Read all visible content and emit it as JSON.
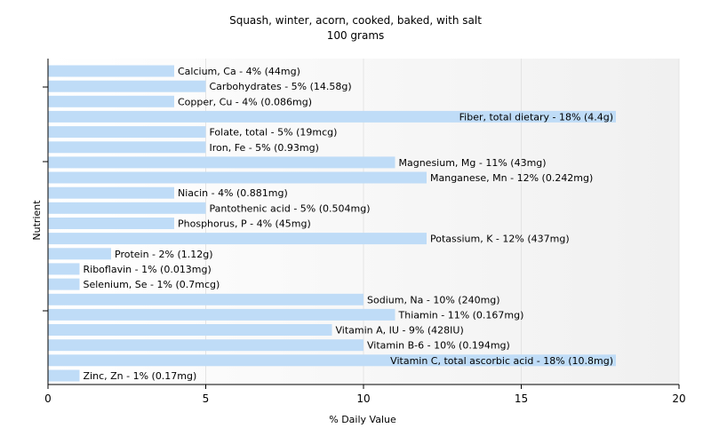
{
  "chart_data": {
    "type": "bar",
    "orientation": "horizontal",
    "title": "Squash, winter, acorn, cooked, baked, with salt",
    "subtitle": "100 grams",
    "xlabel": "% Daily Value",
    "ylabel": "Nutrient",
    "xlim": [
      0,
      20
    ],
    "xticks": [
      "0",
      "5",
      "10",
      "15",
      "20"
    ],
    "grid": "vertical",
    "bar_color": "#bfdcf7",
    "categories": [
      "Calcium, Ca",
      "Carbohydrates",
      "Copper, Cu",
      "Fiber, total dietary",
      "Folate, total",
      "Iron, Fe",
      "Magnesium, Mg",
      "Manganese, Mn",
      "Niacin",
      "Pantothenic acid",
      "Phosphorus, P",
      "Potassium, K",
      "Protein",
      "Riboflavin",
      "Selenium, Se",
      "Sodium, Na",
      "Thiamin",
      "Vitamin A, IU",
      "Vitamin B-6",
      "Vitamin C, total ascorbic acid",
      "Zinc, Zn"
    ],
    "values": [
      4,
      5,
      4,
      18,
      5,
      5,
      11,
      12,
      4,
      5,
      4,
      12,
      2,
      1,
      1,
      10,
      11,
      9,
      10,
      18,
      1
    ],
    "labels": [
      "Calcium, Ca - 4% (44mg)",
      "Carbohydrates - 5% (14.58g)",
      "Copper, Cu - 4% (0.086mg)",
      "Fiber, total dietary - 18% (4.4g)",
      "Folate, total - 5% (19mcg)",
      "Iron, Fe - 5% (0.93mg)",
      "Magnesium, Mg - 11% (43mg)",
      "Manganese, Mn - 12% (0.242mg)",
      "Niacin - 4% (0.881mg)",
      "Pantothenic acid - 5% (0.504mg)",
      "Phosphorus, P - 4% (45mg)",
      "Potassium, K - 12% (437mg)",
      "Protein - 2% (1.12g)",
      "Riboflavin - 1% (0.013mg)",
      "Selenium, Se - 1% (0.7mcg)",
      "Sodium, Na - 10% (240mg)",
      "Thiamin - 11% (0.167mg)",
      "Vitamin A, IU - 9% (428IU)",
      "Vitamin B-6 - 10% (0.194mg)",
      "Vitamin C, total ascorbic acid - 18% (10.8mg)",
      "Zinc, Zn - 1% (0.17mg)"
    ]
  }
}
